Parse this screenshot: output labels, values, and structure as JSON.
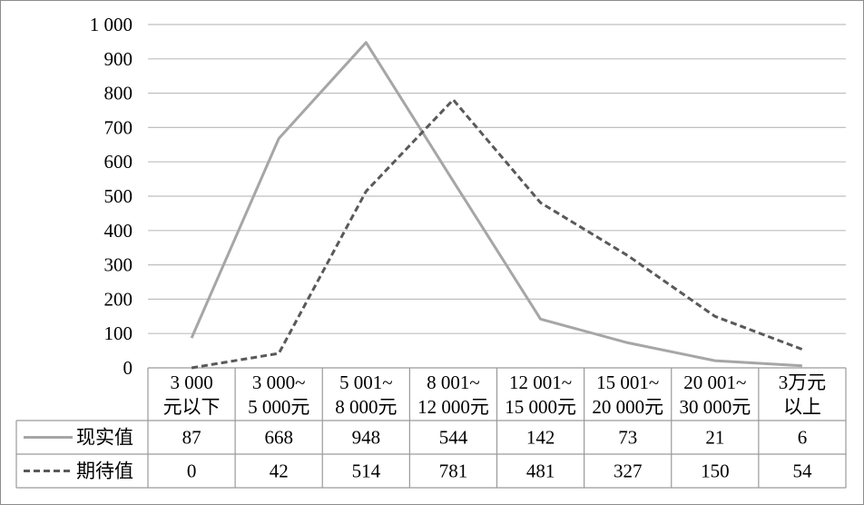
{
  "chart_data": {
    "type": "line",
    "categories": [
      [
        "3 000",
        "元以下"
      ],
      [
        "3 000~",
        "5 000元"
      ],
      [
        "5 001~",
        "8 000元"
      ],
      [
        "8 001~",
        "12 000元"
      ],
      [
        "12 001~",
        "15 000元"
      ],
      [
        "15 001~",
        "20 000元"
      ],
      [
        "20 001~",
        "30 000元"
      ],
      [
        "3万元",
        "以上"
      ]
    ],
    "series": [
      {
        "name": "现实值",
        "values": [
          87,
          668,
          948,
          544,
          142,
          73,
          21,
          6
        ],
        "color": "#a6a6a6",
        "style": "solid"
      },
      {
        "name": "期待值",
        "values": [
          0,
          42,
          514,
          781,
          481,
          327,
          150,
          54
        ],
        "color": "#595959",
        "style": "dashed"
      }
    ],
    "yticks": [
      "0",
      "100",
      "200",
      "300",
      "400",
      "500",
      "600",
      "700",
      "800",
      "900",
      "1 000"
    ],
    "ylim": [
      0,
      1000
    ],
    "grid": true,
    "legend": "data-table-left",
    "title": "",
    "xlabel": "",
    "ylabel": ""
  }
}
